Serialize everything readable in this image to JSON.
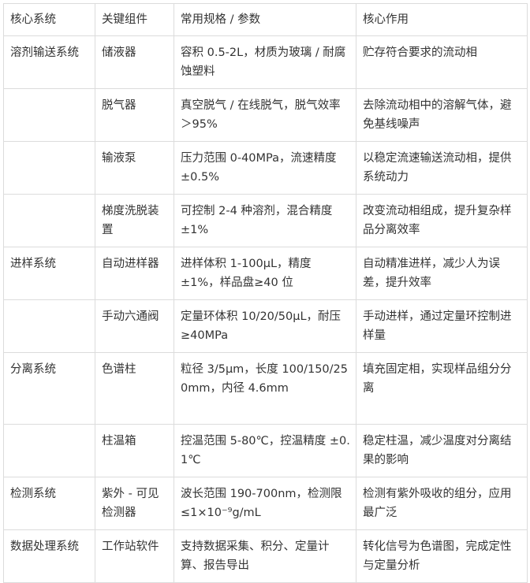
{
  "table": {
    "headers": [
      "核心系统",
      "关键组件",
      "常用规格 / 参数",
      "核心作用"
    ],
    "rows": [
      [
        "溶剂输送系统",
        "储液器",
        "容积 0.5-2L，材质为玻璃 / 耐腐蚀塑料",
        "贮存符合要求的流动相"
      ],
      [
        "",
        "脱气器",
        "真空脱气 / 在线脱气，脱气效率＞95%",
        "去除流动相中的溶解气体，避免基线噪声"
      ],
      [
        "",
        "输液泵",
        "压力范围 0-40MPa，流速精度 ±0.5%",
        "以稳定流速输送流动相，提供系统动力"
      ],
      [
        "",
        "梯度洗脱装置",
        "可控制 2-4 种溶剂，混合精度 ±1%",
        "改变流动相组成，提升复杂样品分离效率"
      ],
      [
        "进样系统",
        "自动进样器",
        "进样体积 1-100μL，精度 ±1%，样品盘≥40 位",
        "自动精准进样，减少人为误差，提升效率"
      ],
      [
        "",
        "手动六通阀",
        "定量环体积 10/20/50μL，耐压≥40MPa",
        "手动进样，通过定量环控制进样量"
      ],
      [
        "分离系统",
        "色谱柱",
        "粒径 3/5μm，长度 100/150/250mm，内径 4.6mm",
        "填充固定相，实现样品组分分离"
      ],
      [
        "",
        "柱温箱",
        "控温范围 5-80℃，控温精度 ±0.1℃",
        "稳定柱温，减少温度对分离结果的影响"
      ],
      [
        "检测系统",
        "紫外 - 可见检测器",
        "波长范围 190-700nm，检测限≤1×10⁻⁹g/mL",
        "检测有紫外吸收的组分，应用最广泛"
      ],
      [
        "数据处理系统",
        "工作站软件",
        "支持数据采集、积分、定量计算、报告导出",
        "转化信号为色谱图，完成定性与定量分析"
      ]
    ]
  }
}
